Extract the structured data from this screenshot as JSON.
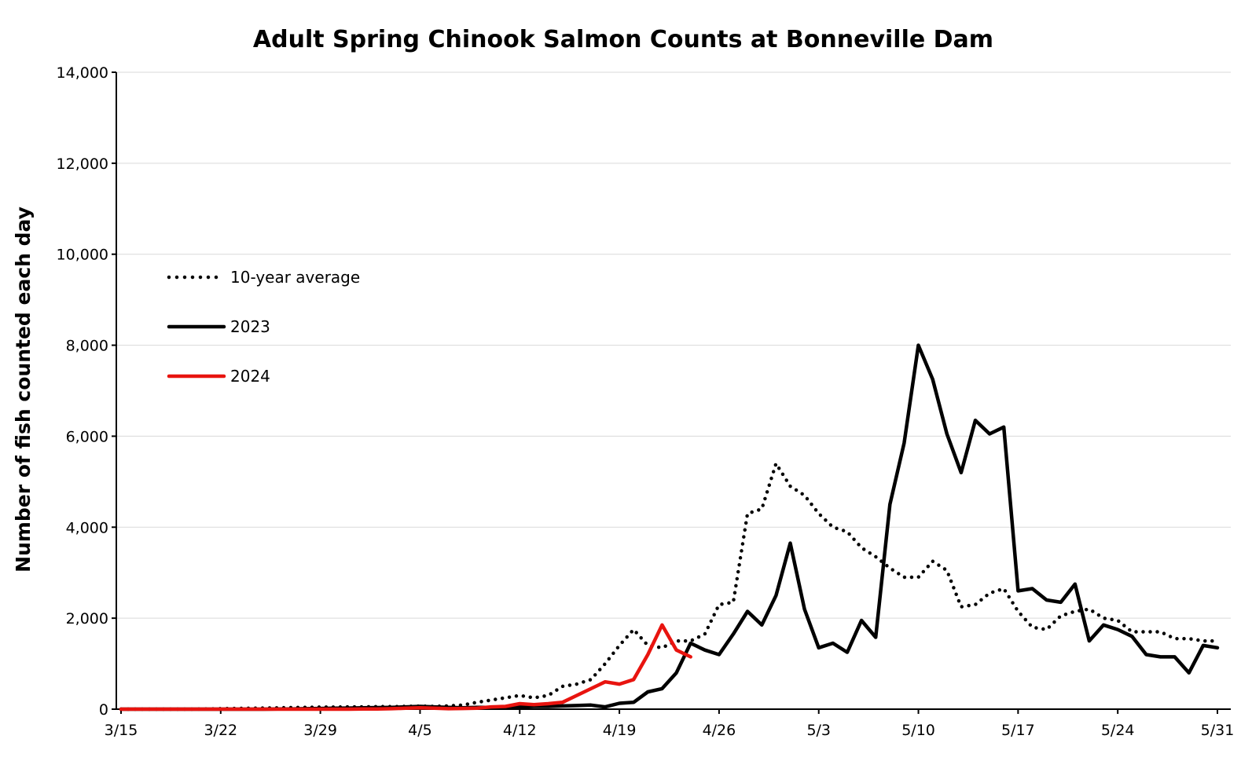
{
  "chart_data": {
    "type": "line",
    "title": "Adult Spring Chinook Salmon Counts at Bonneville Dam",
    "xlabel": "",
    "ylabel": "Number of fish counted each day",
    "ylim": [
      0,
      14000
    ],
    "yticks": [
      0,
      2000,
      4000,
      6000,
      8000,
      10000,
      12000,
      14000
    ],
    "ytick_labels": [
      "0",
      "2,000",
      "4,000",
      "6,000",
      "8,000",
      "10,000",
      "12,000",
      "14,000"
    ],
    "xticks": [
      "3/15",
      "3/22",
      "3/29",
      "4/5",
      "4/12",
      "4/19",
      "4/26",
      "5/3",
      "5/10",
      "5/17",
      "5/24",
      "5/31"
    ],
    "grid": "horizontal",
    "legend_position": "upper-left",
    "series": [
      {
        "name": "10-year average",
        "color": "#000000",
        "style": "dotted",
        "dates": [
          "3/15",
          "3/16",
          "3/17",
          "3/18",
          "3/19",
          "3/20",
          "3/21",
          "3/22",
          "3/23",
          "3/24",
          "3/25",
          "3/26",
          "3/27",
          "3/28",
          "3/29",
          "3/30",
          "3/31",
          "4/1",
          "4/2",
          "4/3",
          "4/4",
          "4/5",
          "4/6",
          "4/7",
          "4/8",
          "4/9",
          "4/10",
          "4/11",
          "4/12",
          "4/13",
          "4/14",
          "4/15",
          "4/16",
          "4/17",
          "4/18",
          "4/19",
          "4/20",
          "4/21",
          "4/22",
          "4/23",
          "4/24",
          "4/25",
          "4/26",
          "4/27",
          "4/28",
          "4/29",
          "4/30",
          "5/1",
          "5/2",
          "5/3",
          "5/4",
          "5/5",
          "5/6",
          "5/7",
          "5/8",
          "5/9",
          "5/10",
          "5/11",
          "5/12",
          "5/13",
          "5/14",
          "5/15",
          "5/16",
          "5/17",
          "5/18",
          "5/19",
          "5/20",
          "5/21",
          "5/22",
          "5/23",
          "5/24",
          "5/25",
          "5/26",
          "5/27",
          "5/28",
          "5/29",
          "5/30",
          "5/31"
        ],
        "values": [
          0,
          0,
          0,
          0,
          0,
          0,
          5,
          10,
          15,
          20,
          25,
          30,
          35,
          40,
          45,
          45,
          50,
          50,
          55,
          55,
          60,
          65,
          60,
          70,
          90,
          150,
          200,
          250,
          300,
          250,
          300,
          500,
          550,
          650,
          1000,
          1400,
          1750,
          1400,
          1350,
          1500,
          1500,
          1650,
          2300,
          2350,
          4300,
          4400,
          5400,
          4900,
          4700,
          4300,
          4000,
          3900,
          3550,
          3350,
          3100,
          2900,
          2900,
          3250,
          3050,
          2250,
          2300,
          2550,
          2650,
          2150,
          1800,
          1750,
          2050,
          2150,
          2200,
          2000,
          1950,
          1700,
          1700,
          1700,
          1550,
          1550,
          1500,
          1500
        ]
      },
      {
        "name": "2023",
        "color": "#000000",
        "style": "solid",
        "dates": [
          "3/15",
          "3/16",
          "3/17",
          "3/18",
          "3/19",
          "3/20",
          "3/21",
          "3/22",
          "3/23",
          "3/24",
          "3/25",
          "3/26",
          "3/27",
          "3/28",
          "3/29",
          "3/30",
          "3/31",
          "4/1",
          "4/2",
          "4/3",
          "4/4",
          "4/5",
          "4/6",
          "4/7",
          "4/8",
          "4/9",
          "4/10",
          "4/11",
          "4/12",
          "4/13",
          "4/14",
          "4/15",
          "4/16",
          "4/17",
          "4/18",
          "4/19",
          "4/20",
          "4/21",
          "4/22",
          "4/23",
          "4/24",
          "4/25",
          "4/26",
          "4/27",
          "4/28",
          "4/29",
          "4/30",
          "5/1",
          "5/2",
          "5/3",
          "5/4",
          "5/5",
          "5/6",
          "5/7",
          "5/8",
          "5/9",
          "5/10",
          "5/11",
          "5/12",
          "5/13",
          "5/14",
          "5/15",
          "5/16",
          "5/17",
          "5/18",
          "5/19",
          "5/20",
          "5/21",
          "5/22",
          "5/23",
          "5/24",
          "5/25",
          "5/26",
          "5/27",
          "5/28",
          "5/29",
          "5/30",
          "5/31"
        ],
        "values": [
          0,
          0,
          0,
          0,
          0,
          0,
          0,
          0,
          0,
          0,
          0,
          5,
          5,
          10,
          15,
          20,
          25,
          30,
          35,
          40,
          50,
          60,
          50,
          40,
          30,
          40,
          40,
          40,
          50,
          60,
          60,
          70,
          80,
          90,
          50,
          130,
          150,
          380,
          450,
          800,
          1450,
          1300,
          1200,
          1650,
          2150,
          1850,
          2500,
          3650,
          2200,
          1350,
          1450,
          1250,
          1950,
          1580,
          4500,
          5850,
          8000,
          7250,
          6050,
          5200,
          6350,
          6050,
          6200,
          2600,
          2650,
          2400,
          2350,
          2750,
          1500,
          1850,
          1750,
          1600,
          1200,
          1150,
          1150,
          800,
          1400,
          1350
        ]
      },
      {
        "name": "2024",
        "color": "#e8140f",
        "style": "solid",
        "dates": [
          "3/15",
          "3/16",
          "3/17",
          "3/18",
          "3/19",
          "3/20",
          "3/21",
          "3/22",
          "3/23",
          "3/24",
          "3/25",
          "3/26",
          "3/27",
          "3/28",
          "3/29",
          "3/30",
          "3/31",
          "4/1",
          "4/2",
          "4/3",
          "4/4",
          "4/5",
          "4/6",
          "4/7",
          "4/8",
          "4/9",
          "4/10",
          "4/11",
          "4/12",
          "4/13",
          "4/14",
          "4/15",
          "4/16",
          "4/17",
          "4/18",
          "4/19",
          "4/20",
          "4/21",
          "4/22",
          "4/23",
          "4/24"
        ],
        "values": [
          0,
          0,
          0,
          0,
          0,
          0,
          0,
          0,
          0,
          0,
          0,
          0,
          0,
          0,
          0,
          0,
          0,
          5,
          5,
          10,
          20,
          30,
          20,
          10,
          15,
          20,
          50,
          60,
          120,
          100,
          120,
          150,
          300,
          450,
          600,
          550,
          650,
          1200,
          1850,
          1300,
          1150
        ]
      }
    ]
  }
}
